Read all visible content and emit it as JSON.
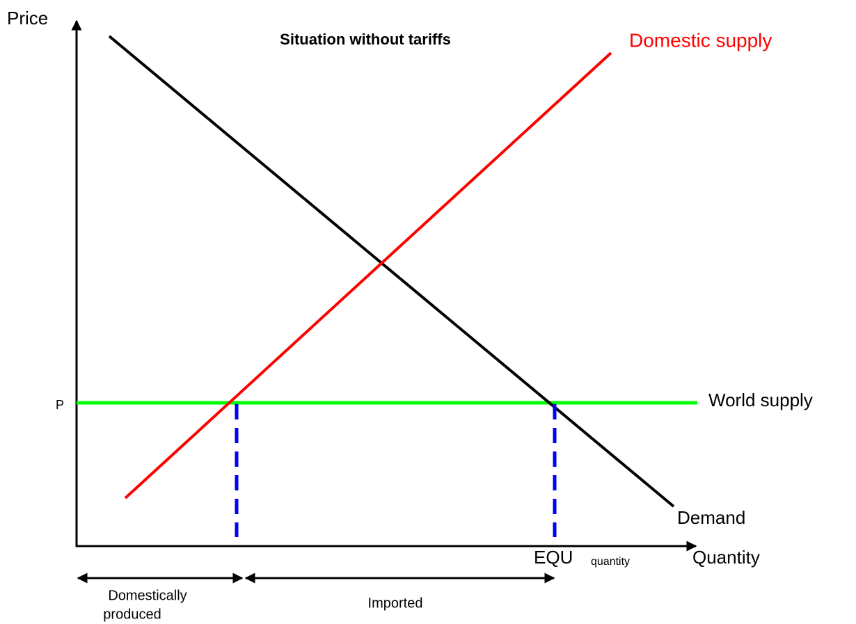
{
  "title": "Situation without tariffs",
  "axes": {
    "y_label": "Price",
    "x_label": "Quantity",
    "price_marker": "P"
  },
  "curves": {
    "domestic_supply": "Domestic supply",
    "demand": "Demand",
    "world_supply": "World supply"
  },
  "quantity_marker": {
    "main": "EQU",
    "sub": "quantity"
  },
  "ranges": {
    "domestic": [
      "Domestically",
      "produced"
    ],
    "imported": "Imported"
  }
}
